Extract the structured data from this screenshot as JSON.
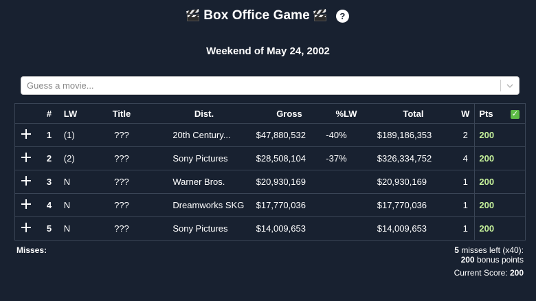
{
  "header": {
    "title": "Box Office Game",
    "help_icon_glyph": "?",
    "weekend_label": "Weekend of May 24, 2002"
  },
  "search": {
    "placeholder": "Guess a movie...",
    "chevron_glyph": "⌄"
  },
  "table": {
    "headers": {
      "num": "#",
      "lw": "LW",
      "title": "Title",
      "dist": "Dist.",
      "gross": "Gross",
      "plw": "%LW",
      "total": "Total",
      "w": "W",
      "pts": "Pts",
      "check": "✓"
    },
    "rows": [
      {
        "num": "1",
        "lw": "(1)",
        "title": "???",
        "dist": "20th Century...",
        "gross": "$47,880,532",
        "plw": "-40%",
        "total": "$189,186,353",
        "w": "2",
        "pts": "200"
      },
      {
        "num": "2",
        "lw": "(2)",
        "title": "???",
        "dist": "Sony Pictures",
        "gross": "$28,508,104",
        "plw": "-37%",
        "total": "$326,334,752",
        "w": "4",
        "pts": "200"
      },
      {
        "num": "3",
        "lw": "N",
        "title": "???",
        "dist": "Warner Bros.",
        "gross": "$20,930,169",
        "plw": "",
        "total": "$20,930,169",
        "w": "1",
        "pts": "200"
      },
      {
        "num": "4",
        "lw": "N",
        "title": "???",
        "dist": "Dreamworks SKG",
        "gross": "$17,770,036",
        "plw": "",
        "total": "$17,770,036",
        "w": "1",
        "pts": "200"
      },
      {
        "num": "5",
        "lw": "N",
        "title": "???",
        "dist": "Sony Pictures",
        "gross": "$14,009,653",
        "plw": "",
        "total": "$14,009,653",
        "w": "1",
        "pts": "200"
      }
    ]
  },
  "footer": {
    "misses_label": "Misses:",
    "misses_left_count": "5",
    "misses_left_text": "misses left (x40):",
    "bonus_points": "200",
    "bonus_text": "bonus points",
    "score_label": "Current Score:",
    "score_value": "200"
  },
  "colors": {
    "background": "#182130",
    "points": "#c4f09a",
    "check": "#5dbb46",
    "border": "#3a4556"
  }
}
